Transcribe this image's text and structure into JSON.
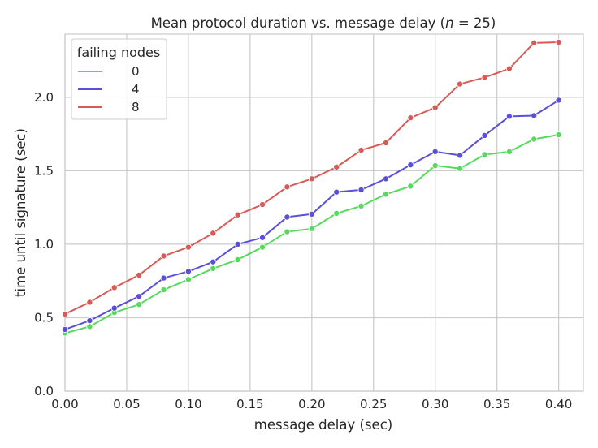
{
  "chart_data": {
    "type": "line",
    "title": "Mean protocol duration vs. message delay (",
    "title_n": "n",
    "title_tail": " = 25)",
    "xlabel": "message delay (sec)",
    "ylabel": "time until signature (sec)",
    "xlim": [
      0.0,
      0.42
    ],
    "ylim": [
      0.0,
      2.43
    ],
    "xticks": [
      "0.00",
      "0.05",
      "0.10",
      "0.15",
      "0.20",
      "0.25",
      "0.30",
      "0.35",
      "0.40"
    ],
    "yticks": [
      "0.0",
      "0.5",
      "1.0",
      "1.5",
      "2.0"
    ],
    "grid": true,
    "legend": {
      "title": "failing nodes",
      "placement": "top-left"
    },
    "x": [
      0.0,
      0.02,
      0.04,
      0.06,
      0.08,
      0.1,
      0.12,
      0.14,
      0.16,
      0.18,
      0.2,
      0.22,
      0.24,
      0.26,
      0.28,
      0.3,
      0.32,
      0.34,
      0.36,
      0.38,
      0.4
    ],
    "series": [
      {
        "name": "0",
        "color": "#57d95e",
        "values": [
          0.395,
          0.44,
          0.535,
          0.59,
          0.69,
          0.76,
          0.835,
          0.895,
          0.98,
          1.085,
          1.105,
          1.21,
          1.26,
          1.34,
          1.395,
          1.535,
          1.515,
          1.61,
          1.63,
          1.715,
          1.745
        ]
      },
      {
        "name": "4",
        "color": "#5a50d8",
        "values": [
          0.42,
          0.48,
          0.565,
          0.645,
          0.77,
          0.815,
          0.88,
          1.0,
          1.045,
          1.185,
          1.205,
          1.355,
          1.37,
          1.445,
          1.54,
          1.63,
          1.605,
          1.74,
          1.87,
          1.875,
          1.98
        ]
      },
      {
        "name": "8",
        "color": "#d65b57",
        "values": [
          0.525,
          0.605,
          0.705,
          0.79,
          0.92,
          0.98,
          1.075,
          1.2,
          1.27,
          1.39,
          1.445,
          1.525,
          1.64,
          1.69,
          1.86,
          1.93,
          2.09,
          2.135,
          2.195,
          2.37,
          2.375
        ]
      }
    ]
  }
}
